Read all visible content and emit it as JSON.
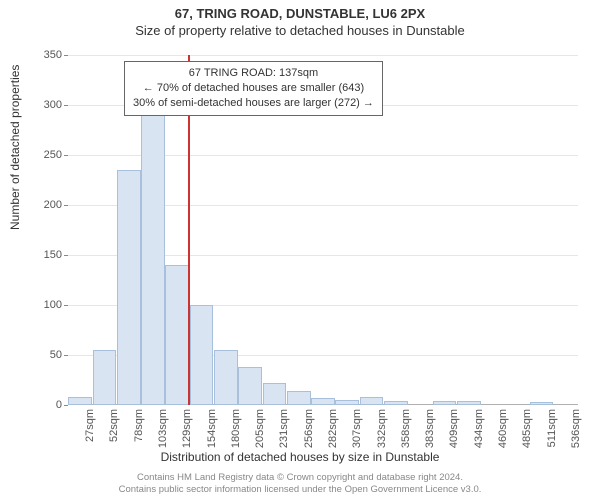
{
  "header": {
    "address": "67, TRING ROAD, DUNSTABLE, LU6 2PX",
    "subtitle": "Size of property relative to detached houses in Dunstable"
  },
  "chart": {
    "type": "histogram",
    "xlabel": "Distribution of detached houses by size in Dunstable",
    "ylabel": "Number of detached properties",
    "background_color": "#ffffff",
    "grid_color": "#e6e6e6",
    "axis_color": "#b0b0b0",
    "bar_fill": "#d8e4f2",
    "bar_stroke": "#a9c0dc",
    "marker_line_color": "#cc3333",
    "label_fontsize": 12,
    "tick_fontsize": 11,
    "ylim": [
      0,
      350
    ],
    "yticks": [
      0,
      50,
      100,
      150,
      200,
      250,
      300,
      350
    ],
    "bars": [
      {
        "label": "27sqm",
        "value": 8
      },
      {
        "label": "52sqm",
        "value": 55
      },
      {
        "label": "78sqm",
        "value": 235
      },
      {
        "label": "103sqm",
        "value": 290
      },
      {
        "label": "129sqm",
        "value": 140
      },
      {
        "label": "154sqm",
        "value": 100
      },
      {
        "label": "180sqm",
        "value": 55
      },
      {
        "label": "205sqm",
        "value": 38
      },
      {
        "label": "231sqm",
        "value": 22
      },
      {
        "label": "256sqm",
        "value": 14
      },
      {
        "label": "282sqm",
        "value": 7
      },
      {
        "label": "307sqm",
        "value": 5
      },
      {
        "label": "332sqm",
        "value": 8
      },
      {
        "label": "358sqm",
        "value": 4
      },
      {
        "label": "383sqm",
        "value": 0
      },
      {
        "label": "409sqm",
        "value": 4
      },
      {
        "label": "434sqm",
        "value": 4
      },
      {
        "label": "460sqm",
        "value": 0
      },
      {
        "label": "485sqm",
        "value": 0
      },
      {
        "label": "511sqm",
        "value": 3
      },
      {
        "label": "536sqm",
        "value": 0
      }
    ],
    "marker_bar_index": 4,
    "callout": {
      "line1": "67 TRING ROAD: 137sqm",
      "line2": "← 70% of detached houses are smaller (643)",
      "line3": "30% of semi-detached houses are larger (272) →",
      "border_color": "#666666",
      "bg_color": "#ffffff",
      "fontsize": 11
    }
  },
  "footer": {
    "line1": "Contains HM Land Registry data © Crown copyright and database right 2024.",
    "line2": "Contains public sector information licensed under the Open Government Licence v3.0."
  }
}
